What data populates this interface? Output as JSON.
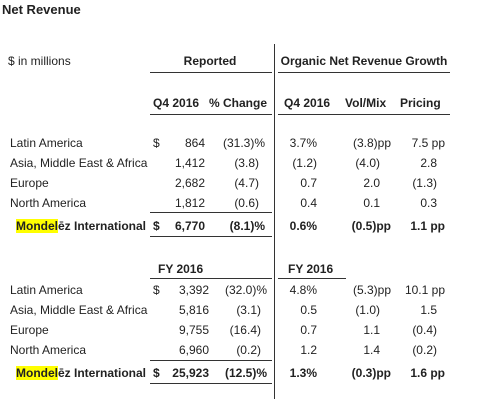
{
  "title": "Net Revenue",
  "units_label": "$ in millions",
  "group_headers": {
    "reported": "Reported",
    "organic": "Organic Net Revenue Growth"
  },
  "q4": {
    "col_headers": {
      "period": "Q4 2016",
      "pct_change": "% Change",
      "organic_period": "Q4 2016",
      "volmix": "Vol/Mix",
      "pricing": "Pricing"
    },
    "rows": [
      {
        "region": "Latin America",
        "currency": "$",
        "value": "864",
        "pct": "(31.3)%",
        "organic": "3.7%",
        "volmix": "(3.8)pp",
        "pricing": "7.5 pp"
      },
      {
        "region": "Asia, Middle East & Africa",
        "currency": "",
        "value": "1,412",
        "pct": "(3.8)",
        "organic": "(1.2)",
        "volmix": "(4.0)",
        "pricing": "2.8"
      },
      {
        "region": "Europe",
        "currency": "",
        "value": "2,682",
        "pct": "(4.7)",
        "organic": "0.7",
        "volmix": "2.0",
        "pricing": "(1.3)"
      },
      {
        "region": "North America",
        "currency": "",
        "value": "1,812",
        "pct": "(0.6)",
        "organic": "0.4",
        "volmix": "0.1",
        "pricing": "0.3"
      }
    ],
    "total": {
      "brand_highlight": "Mondel",
      "brand_rest": "ēz International",
      "currency": "$",
      "value": "6,770",
      "pct": "(8.1)%",
      "organic": "0.6%",
      "volmix": "(0.5)pp",
      "pricing": "1.1 pp"
    }
  },
  "fy": {
    "col_headers": {
      "period": "FY 2016",
      "organic_period": "FY 2016"
    },
    "rows": [
      {
        "region": "Latin America",
        "currency": "$",
        "value": "3,392",
        "pct": "(32.0)%",
        "organic": "4.8%",
        "volmix": "(5.3)pp",
        "pricing": "10.1 pp"
      },
      {
        "region": "Asia, Middle East & Africa",
        "currency": "",
        "value": "5,816",
        "pct": "(3.1)",
        "organic": "0.5",
        "volmix": "(1.0)",
        "pricing": "1.5"
      },
      {
        "region": "Europe",
        "currency": "",
        "value": "9,755",
        "pct": "(16.4)",
        "organic": "0.7",
        "volmix": "1.1",
        "pricing": "(0.4)"
      },
      {
        "region": "North America",
        "currency": "",
        "value": "6,960",
        "pct": "(0.2)",
        "organic": "1.2",
        "volmix": "1.4",
        "pricing": "(0.2)"
      }
    ],
    "total": {
      "brand_highlight": "Mondel",
      "brand_rest": "ēz International",
      "currency": "$",
      "value": "25,923",
      "pct": "(12.5)%",
      "organic": "1.3%",
      "volmix": "(0.3)pp",
      "pricing": "1.6 pp"
    }
  }
}
